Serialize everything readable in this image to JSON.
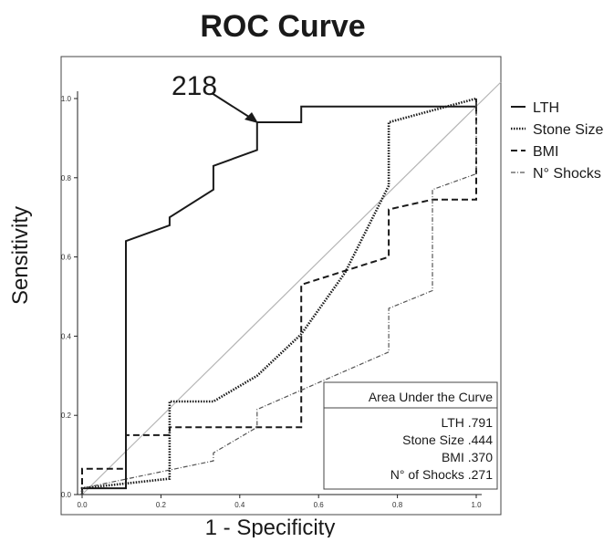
{
  "chart_data": {
    "type": "line",
    "title": "ROC Curve",
    "xlabel": "1 - Specificity",
    "ylabel": "Sensitivity",
    "xlim": [
      0,
      1
    ],
    "ylim": [
      0,
      1
    ],
    "x_ticks": [
      "0.0",
      "0.2",
      "0.4",
      "0.6",
      "0.8",
      "1.0"
    ],
    "y_ticks": [
      "0.0",
      "0.2",
      "0.4",
      "0.6",
      "0.8",
      "1.0"
    ],
    "grid": false,
    "legend_position": "right",
    "diagonal_reference": true,
    "series": [
      {
        "name": "LTH",
        "style": "solid",
        "color": "#1a1a1a",
        "points": [
          [
            0.0,
            0.0
          ],
          [
            0.0,
            0.016
          ],
          [
            0.111,
            0.016
          ],
          [
            0.111,
            0.64
          ],
          [
            0.222,
            0.68
          ],
          [
            0.222,
            0.7
          ],
          [
            0.333,
            0.77
          ],
          [
            0.333,
            0.83
          ],
          [
            0.444,
            0.87
          ],
          [
            0.444,
            0.94
          ],
          [
            0.556,
            0.94
          ],
          [
            0.556,
            0.98
          ],
          [
            1.0,
            0.98
          ],
          [
            1.0,
            1.0
          ]
        ]
      },
      {
        "name": "Stone Size",
        "style": "dotted",
        "color": "#1a1a1a",
        "points": [
          [
            0.0,
            0.0
          ],
          [
            0.0,
            0.016
          ],
          [
            0.222,
            0.04
          ],
          [
            0.222,
            0.235
          ],
          [
            0.333,
            0.235
          ],
          [
            0.444,
            0.3
          ],
          [
            0.556,
            0.405
          ],
          [
            0.667,
            0.56
          ],
          [
            0.778,
            0.78
          ],
          [
            0.778,
            0.94
          ],
          [
            1.0,
            1.0
          ]
        ]
      },
      {
        "name": "BMI",
        "style": "dashed",
        "color": "#1a1a1a",
        "points": [
          [
            0.0,
            0.0
          ],
          [
            0.0,
            0.065
          ],
          [
            0.111,
            0.065
          ],
          [
            0.111,
            0.15
          ],
          [
            0.222,
            0.15
          ],
          [
            0.222,
            0.17
          ],
          [
            0.556,
            0.17
          ],
          [
            0.556,
            0.53
          ],
          [
            0.778,
            0.6
          ],
          [
            0.778,
            0.72
          ],
          [
            0.889,
            0.745
          ],
          [
            1.0,
            0.745
          ],
          [
            1.0,
            1.0
          ]
        ]
      },
      {
        "name": "N° Shocks",
        "style": "dashdot",
        "color": "#555555",
        "points": [
          [
            0.0,
            0.0
          ],
          [
            0.0,
            0.016
          ],
          [
            0.333,
            0.085
          ],
          [
            0.333,
            0.105
          ],
          [
            0.444,
            0.17
          ],
          [
            0.444,
            0.215
          ],
          [
            0.778,
            0.36
          ],
          [
            0.778,
            0.47
          ],
          [
            0.889,
            0.515
          ],
          [
            0.889,
            0.77
          ],
          [
            1.0,
            0.81
          ],
          [
            1.0,
            1.0
          ]
        ]
      }
    ],
    "annotation": {
      "text": "218",
      "target": [
        0.444,
        0.94
      ]
    },
    "auc_box": {
      "title": "Area Under the Curve",
      "rows": [
        "LTH .791",
        "Stone Size .444",
        "BMI .370",
        "N° of Shocks .271"
      ]
    }
  }
}
